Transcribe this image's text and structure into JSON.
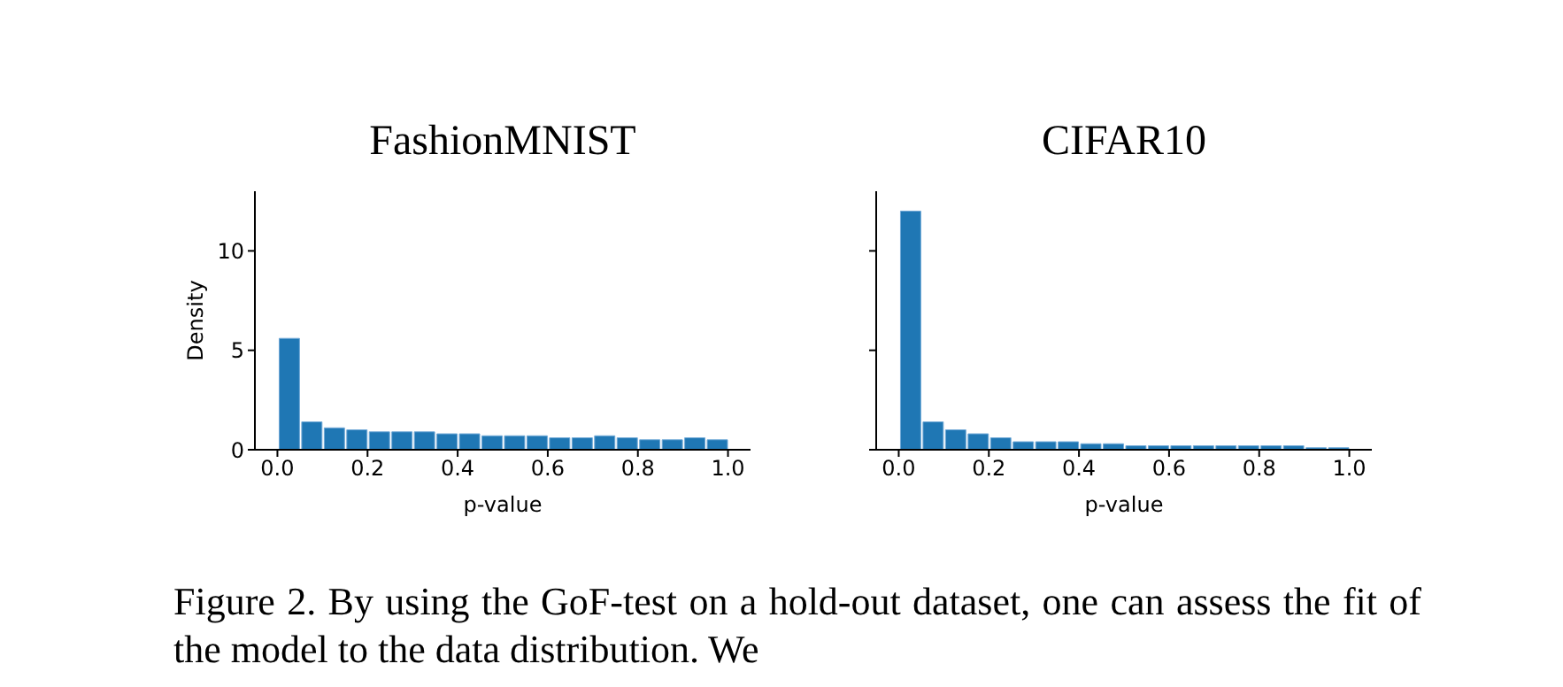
{
  "chart_data": [
    {
      "type": "histogram",
      "title": "FashionMNIST",
      "xlabel": "p-value",
      "ylabel": "Density",
      "color": "#1f77b4",
      "bins": [
        0,
        0.05,
        0.1,
        0.15,
        0.2,
        0.25,
        0.3,
        0.35,
        0.4,
        0.45,
        0.5,
        0.55,
        0.6,
        0.65,
        0.7,
        0.75,
        0.8,
        0.85,
        0.9,
        0.95,
        1.0
      ],
      "values": [
        5.6,
        1.4,
        1.1,
        1.0,
        0.9,
        0.9,
        0.9,
        0.8,
        0.8,
        0.7,
        0.7,
        0.7,
        0.6,
        0.6,
        0.7,
        0.6,
        0.5,
        0.5,
        0.6,
        0.5
      ],
      "xlim": [
        -0.05,
        1.05
      ],
      "ylim": [
        0,
        13
      ],
      "xticks": [
        {
          "value": 0,
          "label": "0.0"
        },
        {
          "value": 0.2,
          "label": "0.2"
        },
        {
          "value": 0.4,
          "label": "0.4"
        },
        {
          "value": 0.6,
          "label": "0.6"
        },
        {
          "value": 0.8,
          "label": "0.8"
        },
        {
          "value": 1,
          "label": "1.0"
        }
      ],
      "yticks": [
        0,
        5,
        10
      ],
      "annotations": [
        "Figure 2. By using the GoF-test on a hold-out dataset, one can assess the fit of the model to the data distribution. We"
      ]
    },
    {
      "type": "histogram",
      "title": "CIFAR10",
      "xlabel": "p-value",
      "color": "#1f77b4",
      "bins": [
        0,
        0.05,
        0.1,
        0.15,
        0.2,
        0.25,
        0.3,
        0.35,
        0.4,
        0.45,
        0.5,
        0.55,
        0.6,
        0.65,
        0.7,
        0.75,
        0.8,
        0.85,
        0.9,
        0.95,
        1.0
      ],
      "values": [
        12.0,
        1.4,
        1.0,
        0.8,
        0.6,
        0.4,
        0.4,
        0.4,
        0.3,
        0.3,
        0.2,
        0.2,
        0.2,
        0.2,
        0.2,
        0.2,
        0.2,
        0.2,
        0.1,
        0.1
      ],
      "xlim": [
        -0.05,
        1.05
      ],
      "ylim": [
        0,
        13
      ],
      "xticks": [
        {
          "value": 0,
          "label": "0.0"
        },
        {
          "value": 0.2,
          "label": "0.2"
        },
        {
          "value": 0.4,
          "label": "0.4"
        },
        {
          "value": 0.6,
          "label": "0.6"
        },
        {
          "value": 0.8,
          "label": "0.8"
        },
        {
          "value": 1,
          "label": "1.0"
        }
      ],
      "yticks": [
        0,
        5,
        10
      ],
      "tick_labels": "x"
    }
  ]
}
